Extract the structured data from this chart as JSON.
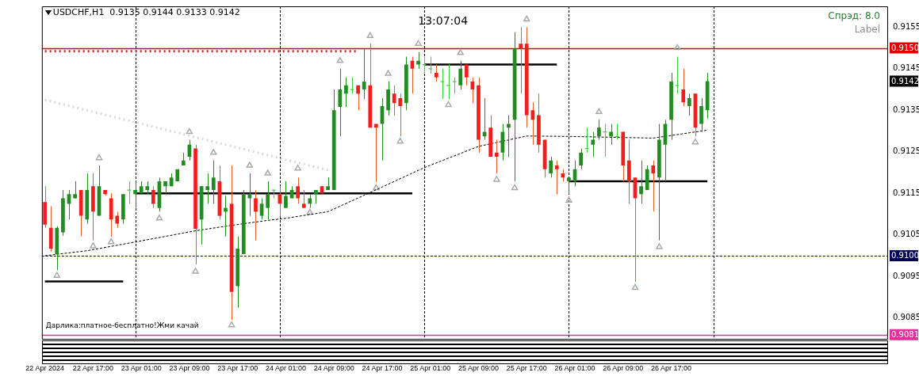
{
  "chart_data": {
    "type": "candlestick",
    "title": "USDCHF,H1  0.9135 0.9144 0.9133 0.9142",
    "annotations": [
      "13:07:04",
      "Спрэд: 8.0",
      "Label",
      "Дарлика:платное-бесплатно!Жми качай",
      {
        "text": "0.9142",
        "y": 0.9142
      }
    ],
    "x": [
      "2024-04-22T09:00",
      "2024-04-22T10:00",
      "2024-04-22T11:00",
      "2024-04-22T12:00",
      "2024-04-22T13:00",
      "2024-04-22T14:00",
      "2024-04-22T15:00",
      "2024-04-22T16:00",
      "2024-04-22T17:00",
      "2024-04-22T18:00",
      "2024-04-22T19:00",
      "2024-04-22T20:00",
      "2024-04-22T21:00",
      "2024-04-22T22:00",
      "2024-04-22T23:00",
      "2024-04-23T00:00",
      "2024-04-23T01:00",
      "2024-04-23T02:00",
      "2024-04-23T03:00",
      "2024-04-23T04:00",
      "2024-04-23T05:00",
      "2024-04-23T06:00",
      "2024-04-23T07:00",
      "2024-04-23T08:00",
      "2024-04-23T09:00",
      "2024-04-23T10:00",
      "2024-04-23T11:00",
      "2024-04-23T12:00",
      "2024-04-23T13:00",
      "2024-04-23T14:00",
      "2024-04-23T15:00",
      "2024-04-23T16:00",
      "2024-04-23T17:00",
      "2024-04-23T18:00",
      "2024-04-23T19:00",
      "2024-04-23T20:00",
      "2024-04-23T21:00",
      "2024-04-23T22:00",
      "2024-04-23T23:00",
      "2024-04-24T00:00",
      "2024-04-24T01:00",
      "2024-04-24T02:00",
      "2024-04-24T03:00",
      "2024-04-24T04:00",
      "2024-04-24T05:00",
      "2024-04-24T06:00",
      "2024-04-24T07:00",
      "2024-04-24T08:00",
      "2024-04-24T09:00",
      "2024-04-24T10:00",
      "2024-04-24T11:00",
      "2024-04-24T12:00",
      "2024-04-24T13:00",
      "2024-04-24T14:00",
      "2024-04-24T15:00",
      "2024-04-24T16:00",
      "2024-04-24T17:00",
      "2024-04-24T18:00",
      "2024-04-24T19:00",
      "2024-04-24T20:00",
      "2024-04-24T21:00",
      "2024-04-24T22:00",
      "2024-04-24T23:00",
      "2024-04-25T00:00",
      "2024-04-25T01:00",
      "2024-04-25T02:00",
      "2024-04-25T03:00",
      "2024-04-25T04:00",
      "2024-04-25T05:00",
      "2024-04-25T06:00",
      "2024-04-25T07:00",
      "2024-04-25T08:00",
      "2024-04-25T09:00",
      "2024-04-25T10:00",
      "2024-04-25T11:00",
      "2024-04-25T12:00",
      "2024-04-25T13:00",
      "2024-04-25T14:00",
      "2024-04-25T15:00",
      "2024-04-25T16:00",
      "2024-04-25T17:00",
      "2024-04-25T18:00",
      "2024-04-25T19:00",
      "2024-04-25T20:00",
      "2024-04-25T21:00",
      "2024-04-25T22:00",
      "2024-04-25T23:00",
      "2024-04-26T00:00",
      "2024-04-26T01:00",
      "2024-04-26T02:00",
      "2024-04-26T03:00",
      "2024-04-26T04:00",
      "2024-04-26T05:00",
      "2024-04-26T06:00",
      "2024-04-26T07:00",
      "2024-04-26T08:00",
      "2024-04-26T09:00",
      "2024-04-26T10:00",
      "2024-04-26T11:00",
      "2024-04-26T12:00",
      "2024-04-26T13:00",
      "2024-04-26T14:00",
      "2024-04-26T15:00",
      "2024-04-26T16:00",
      "2024-04-26T17:00",
      "2024-04-26T18:00",
      "2024-04-26T19:00",
      "2024-04-26T20:00",
      "2024-04-26T21:00",
      "2024-04-26T22:00",
      "2024-04-26T23:00"
    ],
    "ohlc": [
      [
        0.91129,
        0.91167,
        0.91067,
        0.91075
      ],
      [
        0.91067,
        0.91119,
        0.9101,
        0.91017
      ],
      [
        0.91004,
        0.91071,
        0.90965,
        0.91067
      ],
      [
        0.91056,
        0.91158,
        0.91048,
        0.91138
      ],
      [
        0.91125,
        0.91158,
        0.91087,
        0.91148
      ],
      [
        0.91138,
        0.91179,
        0.91138,
        0.91148
      ],
      [
        0.91158,
        0.91158,
        0.91046,
        0.91096
      ],
      [
        0.91087,
        0.91198,
        0.91077,
        0.91158
      ],
      [
        0.91167,
        0.91198,
        0.91037,
        0.91106
      ],
      [
        0.91096,
        0.91217,
        0.91096,
        0.91167
      ],
      [
        0.91158,
        0.91158,
        0.91144,
        0.91148
      ],
      [
        0.91138,
        0.9115,
        0.91046,
        0.91087
      ],
      [
        0.91096,
        0.91106,
        0.91067,
        0.91077
      ],
      [
        0.91087,
        0.91148,
        0.91077,
        0.91148
      ],
      [
        0.91158,
        0.91179,
        0.91125,
        0.91158
      ],
      [
        0.91148,
        0.91179,
        0.91115,
        0.91158
      ],
      [
        0.9115,
        0.91179,
        0.9115,
        0.91167
      ],
      [
        0.91158,
        0.91179,
        0.91148,
        0.91167
      ],
      [
        0.91158,
        0.91167,
        0.91115,
        0.91125
      ],
      [
        0.91115,
        0.91188,
        0.91106,
        0.91179
      ],
      [
        0.91167,
        0.91179,
        0.9115,
        0.91179
      ],
      [
        0.91167,
        0.91198,
        0.91167,
        0.91188
      ],
      [
        0.91179,
        0.91208,
        0.91179,
        0.91208
      ],
      [
        0.91217,
        0.91248,
        0.91217,
        0.91229
      ],
      [
        0.91238,
        0.91279,
        0.91229,
        0.91267
      ],
      [
        0.91258,
        0.91267,
        0.90979,
        0.91065
      ],
      [
        0.91087,
        0.91167,
        0.91027,
        0.91167
      ],
      [
        0.91158,
        0.91198,
        0.91125,
        0.91167
      ],
      [
        0.91158,
        0.91229,
        0.91125,
        0.91188
      ],
      [
        0.91179,
        0.91217,
        0.91087,
        0.91096
      ],
      [
        0.91106,
        0.91144,
        0.91046,
        0.91115
      ],
      [
        0.91125,
        0.91217,
        0.90846,
        0.90913
      ],
      [
        0.90927,
        0.91046,
        0.90875,
        0.91017
      ],
      [
        0.91004,
        0.91158,
        0.91004,
        0.91148
      ],
      [
        0.91138,
        0.91198,
        0.91096,
        0.91148
      ],
      [
        0.91138,
        0.91158,
        0.91037,
        0.91106
      ],
      [
        0.91096,
        0.91138,
        0.91087,
        0.91125
      ],
      [
        0.91115,
        0.91179,
        0.91087,
        0.91148
      ],
      [
        0.91158,
        0.91158,
        0.91138,
        0.91158
      ],
      [
        0.91148,
        0.91167,
        0.91094,
        0.91125
      ],
      [
        0.91115,
        0.91179,
        0.91115,
        0.91144
      ],
      [
        0.91138,
        0.91167,
        0.91138,
        0.91158
      ],
      [
        0.91167,
        0.91188,
        0.91125,
        0.91138
      ],
      [
        0.91125,
        0.91158,
        0.91115,
        0.91115
      ],
      [
        0.91125,
        0.91148,
        0.91115,
        0.91138
      ],
      [
        0.91148,
        0.91158,
        0.91125,
        0.91158
      ],
      [
        0.91167,
        0.91167,
        0.9115,
        0.9115
      ],
      [
        0.91158,
        0.91188,
        0.91158,
        0.91167
      ],
      [
        0.91158,
        0.914,
        0.91158,
        0.9135
      ],
      [
        0.91358,
        0.9145,
        0.91287,
        0.914
      ],
      [
        0.9139,
        0.91429,
        0.91358,
        0.9141
      ],
      [
        0.914,
        0.91429,
        0.9139,
        0.914
      ],
      [
        0.9141,
        0.9141,
        0.9135,
        0.9139
      ],
      [
        0.914,
        0.91498,
        0.91377,
        0.91419
      ],
      [
        0.9141,
        0.9151,
        0.91308,
        0.91308
      ],
      [
        0.91317,
        0.91317,
        0.91177,
        0.91308
      ],
      [
        0.91317,
        0.91379,
        0.91229,
        0.9136
      ],
      [
        0.9135,
        0.91419,
        0.91337,
        0.914
      ],
      [
        0.9139,
        0.9141,
        0.91337,
        0.91367
      ],
      [
        0.91379,
        0.9139,
        0.91287,
        0.9136
      ],
      [
        0.91367,
        0.91479,
        0.9135,
        0.9146
      ],
      [
        0.91469,
        0.91479,
        0.9139,
        0.9145
      ],
      [
        0.9146,
        0.9149,
        0.9145,
        0.91469
      ],
      [
        0.9146,
        0.91479,
        0.9144,
        0.9146
      ],
      [
        0.9145,
        0.91479,
        0.91438,
        0.9145
      ],
      [
        0.9144,
        0.9146,
        0.91419,
        0.91429
      ],
      [
        0.91419,
        0.9145,
        0.91377,
        0.91419
      ],
      [
        0.9141,
        0.9146,
        0.91377,
        0.9141
      ],
      [
        0.91419,
        0.91429,
        0.9139,
        0.91419
      ],
      [
        0.9141,
        0.91469,
        0.914,
        0.9145
      ],
      [
        0.9146,
        0.9146,
        0.9141,
        0.91429
      ],
      [
        0.91419,
        0.91429,
        0.91367,
        0.914
      ],
      [
        0.9141,
        0.91429,
        0.91248,
        0.91279
      ],
      [
        0.91287,
        0.91379,
        0.91279,
        0.91298
      ],
      [
        0.91308,
        0.91338,
        0.91238,
        0.91238
      ],
      [
        0.91248,
        0.91279,
        0.91198,
        0.91238
      ],
      [
        0.91248,
        0.91317,
        0.91229,
        0.91298
      ],
      [
        0.91308,
        0.91338,
        0.91238,
        0.91317
      ],
      [
        0.91327,
        0.91538,
        0.91179,
        0.91498
      ],
      [
        0.9151,
        0.9155,
        0.9139,
        0.91498
      ],
      [
        0.9151,
        0.9155,
        0.91308,
        0.91338
      ],
      [
        0.9135,
        0.91369,
        0.91267,
        0.91327
      ],
      [
        0.91338,
        0.9139,
        0.91248,
        0.91267
      ],
      [
        0.91279,
        0.91279,
        0.91188,
        0.91208
      ],
      [
        0.91198,
        0.91238,
        0.91188,
        0.91229
      ],
      [
        0.91217,
        0.91229,
        0.91148,
        0.91208
      ],
      [
        0.91198,
        0.91208,
        0.91179,
        0.91188
      ],
      [
        0.91179,
        0.91188,
        0.91148,
        0.91188
      ],
      [
        0.91179,
        0.91229,
        0.91167,
        0.91208
      ],
      [
        0.91217,
        0.91258,
        0.91208,
        0.91248
      ],
      [
        0.91258,
        0.91308,
        0.91248,
        0.91258
      ],
      [
        0.91267,
        0.91298,
        0.91238,
        0.91279
      ],
      [
        0.91287,
        0.91327,
        0.91279,
        0.91308
      ],
      [
        0.91298,
        0.91317,
        0.91238,
        0.91298
      ],
      [
        0.91287,
        0.91317,
        0.91267,
        0.91298
      ],
      [
        0.91287,
        0.91317,
        0.91279,
        0.91287
      ],
      [
        0.91298,
        0.91298,
        0.91179,
        0.91217
      ],
      [
        0.91229,
        0.91279,
        0.91125,
        0.91179
      ],
      [
        0.91188,
        0.91188,
        0.90937,
        0.91138
      ],
      [
        0.91148,
        0.91229,
        0.91125,
        0.91167
      ],
      [
        0.91158,
        0.91217,
        0.91158,
        0.91208
      ],
      [
        0.91217,
        0.91229,
        0.91106,
        0.91198
      ],
      [
        0.91188,
        0.91317,
        0.91037,
        0.91279
      ],
      [
        0.91267,
        0.91327,
        0.91179,
        0.91317
      ],
      [
        0.91327,
        0.9144,
        0.91279,
        0.91419
      ],
      [
        0.9141,
        0.91479,
        0.9139,
        0.9141
      ],
      [
        0.914,
        0.9145,
        0.9136,
        0.91369
      ],
      [
        0.9136,
        0.9139,
        0.91337,
        0.91379
      ],
      [
        0.9139,
        0.9139,
        0.91287,
        0.91308
      ],
      [
        0.91317,
        0.91379,
        0.91298,
        0.9136
      ],
      [
        0.9135,
        0.9144,
        0.9133,
        0.9142
      ]
    ],
    "series": [
      {
        "type": "line",
        "line_style": "dashed",
        "color": "#000000",
        "x": [
          "2024-04-22T09:00",
          "2024-04-22T16:00",
          "2024-04-23T00:00",
          "2024-04-23T10:00",
          "2024-04-23T16:00",
          "2024-04-23T22:00",
          "2024-04-24T01:00",
          "2024-04-24T08:00",
          "2024-04-24T15:00",
          "2024-04-25T00:00",
          "2024-04-25T09:00",
          "2024-04-25T17:00",
          "2024-04-26T00:00",
          "2024-04-26T14:00",
          "2024-04-26T23:00"
        ],
        "values": [
          0.91,
          0.91012,
          0.91033,
          0.9106,
          0.91073,
          0.91085,
          0.9109,
          0.91106,
          0.91152,
          0.91212,
          0.91263,
          0.91288,
          0.91287,
          0.91283,
          0.91302
        ]
      },
      {
        "type": "line",
        "line_style": "dotted",
        "color": "#d8d8d8",
        "x": [
          "2024-04-22T09:00",
          "2024-04-24T08:00"
        ],
        "values": [
          0.91375,
          0.91206
        ]
      },
      {
        "type": "line",
        "line_style": "dotted",
        "color": "#b03030",
        "x": [
          "2024-04-22T09:00",
          "2024-04-24T13:00"
        ],
        "values": [
          0.91492,
          0.91492
        ]
      },
      {
        "type": "line",
        "line_style": "solid",
        "color": "#000000",
        "x": [
          "2024-04-22T09:00",
          "2024-04-22T22:00"
        ],
        "values": [
          0.90938,
          0.90938
        ]
      },
      {
        "type": "line",
        "line_style": "solid",
        "color": "#000000",
        "x": [
          "2024-04-23T00:00",
          "2024-04-24T22:00"
        ],
        "values": [
          0.9115,
          0.9115
        ]
      },
      {
        "type": "line",
        "line_style": "solid",
        "color": "#000000",
        "x": [
          "2024-04-25T00:00",
          "2024-04-25T22:00"
        ],
        "values": [
          0.9146,
          0.9146
        ]
      },
      {
        "type": "line",
        "line_style": "solid",
        "color": "#000000",
        "x": [
          "2024-04-26T00:00",
          "2024-04-26T23:00"
        ],
        "values": [
          0.91179,
          0.91179
        ]
      },
      {
        "type": "scatter",
        "marker": "triangle",
        "color": "#a9a9a9",
        "x": [
          "2024-04-22T18:00",
          "2024-04-23T09:00",
          "2024-04-23T13:00",
          "2024-04-23T19:00",
          "2024-04-23T22:00",
          "2024-04-24T03:00",
          "2024-04-24T10:00",
          "2024-04-24T15:00",
          "2024-04-24T18:00",
          "2024-04-24T23:00",
          "2024-04-25T06:00",
          "2024-04-25T17:00",
          "2024-04-26T05:00",
          "2024-04-26T18:00"
        ],
        "values": [
          0.91235,
          0.91298,
          0.91248,
          0.91217,
          0.91198,
          0.9121,
          0.91469,
          0.91529,
          0.91438,
          0.9151,
          0.91488,
          0.91569,
          0.91346,
          0.915
        ]
      },
      {
        "type": "scatter",
        "marker": "triangle",
        "color": "#a9a9a9",
        "x": [
          "2024-04-22T11:00",
          "2024-04-22T17:00",
          "2024-04-22T20:00",
          "2024-04-23T04:00",
          "2024-04-23T10:00",
          "2024-04-23T16:00",
          "2024-04-24T05:00",
          "2024-04-24T16:00",
          "2024-04-24T20:00",
          "2024-04-25T04:00",
          "2024-04-25T12:00",
          "2024-04-25T15:00",
          "2024-04-26T00:00",
          "2024-04-26T11:00",
          "2024-04-26T15:00",
          "2024-04-26T21:00"
        ],
        "values": [
          0.90952,
          0.91023,
          0.91033,
          0.9109,
          0.90962,
          0.90833,
          0.91104,
          0.91163,
          0.91275,
          0.91363,
          0.91183,
          0.91163,
          0.91133,
          0.90923,
          0.91021,
          0.91273
        ]
      }
    ],
    "ref_lines": [
      {
        "axis": "y",
        "value": 0.915,
        "label": "0.9150",
        "color": "#e00000"
      },
      {
        "axis": "y",
        "value": 0.91,
        "label": "0.9100",
        "color": "#000050",
        "line_style": "dashed"
      },
      {
        "axis": "y",
        "value": 0.9081,
        "label": "0.9081",
        "color": "#e0309a"
      },
      {
        "axis": "x",
        "value": "2024-04-23T00:00",
        "label": null,
        "color": "#000000",
        "line_style": "dashed"
      },
      {
        "axis": "x",
        "value": "2024-04-24T00:00",
        "label": null,
        "color": "#000000",
        "line_style": "dashed"
      },
      {
        "axis": "x",
        "value": "2024-04-25T00:00",
        "label": null,
        "color": "#000000",
        "line_style": "dashed"
      },
      {
        "axis": "x",
        "value": "2024-04-26T00:00",
        "label": null,
        "color": "#000000",
        "line_style": "dashed"
      },
      {
        "axis": "x",
        "value": "2024-04-27T00:00",
        "label": null,
        "color": "#000000",
        "line_style": "dashed"
      }
    ],
    "xlim": [
      "2024-04-22T08:30",
      "2024-04-28T05:00"
    ],
    "xticks": [
      {
        "value": "2024-04-22T09:00",
        "label": "22 Apr 2024"
      },
      {
        "value": "2024-04-22T17:00",
        "label": "22 Apr 17:00"
      },
      {
        "value": "2024-04-23T01:00",
        "label": "23 Apr 01:00"
      },
      {
        "value": "2024-04-23T09:00",
        "label": "23 Apr 09:00"
      },
      {
        "value": "2024-04-23T17:00",
        "label": "23 Apr 17:00"
      },
      {
        "value": "2024-04-24T01:00",
        "label": "24 Apr 01:00"
      },
      {
        "value": "2024-04-24T09:00",
        "label": "24 Apr 09:00"
      },
      {
        "value": "2024-04-24T17:00",
        "label": "24 Apr 17:00"
      },
      {
        "value": "2024-04-25T01:00",
        "label": "25 Apr 01:00"
      },
      {
        "value": "2024-04-25T09:00",
        "label": "25 Apr 09:00"
      },
      {
        "value": "2024-04-25T17:00",
        "label": "25 Apr 17:00"
      },
      {
        "value": "2024-04-26T01:00",
        "label": "26 Apr 01:00"
      },
      {
        "value": "2024-04-26T09:00",
        "label": "26 Apr 09:00"
      },
      {
        "value": "2024-04-26T17:00",
        "label": "26 Apr 17:00"
      }
    ],
    "ylim": [
      0.908,
      0.916
    ],
    "yticks": [
      0.9085,
      0.9095,
      0.9105,
      0.9115,
      0.9125,
      0.9135,
      0.9145,
      0.9155
    ]
  }
}
